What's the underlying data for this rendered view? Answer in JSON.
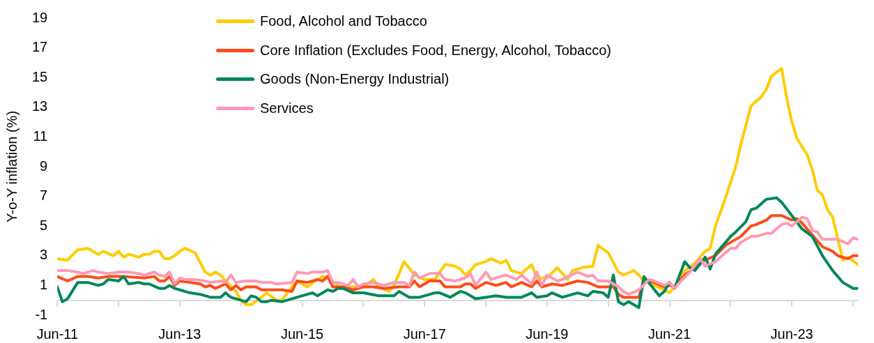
{
  "chart_data": {
    "type": "line",
    "ylabel": "Y-o-Y inflation (%)",
    "ylim": [
      -1,
      19
    ],
    "yticks": [
      -1,
      1,
      3,
      5,
      7,
      9,
      11,
      13,
      15,
      17,
      19
    ],
    "xlim": [
      "2011-06",
      "2024-07"
    ],
    "xticks": [
      {
        "value": "2011-06",
        "label": "Jun-11"
      },
      {
        "value": "2012-06",
        "label": null
      },
      {
        "value": "2013-06",
        "label": "Jun-13"
      },
      {
        "value": "2014-06",
        "label": null
      },
      {
        "value": "2015-06",
        "label": "Jun-15"
      },
      {
        "value": "2016-06",
        "label": null
      },
      {
        "value": "2017-06",
        "label": "Jun-17"
      },
      {
        "value": "2018-06",
        "label": null
      },
      {
        "value": "2019-06",
        "label": "Jun-19"
      },
      {
        "value": "2020-06",
        "label": null
      },
      {
        "value": "2021-06",
        "label": "Jun-21"
      },
      {
        "value": "2022-06",
        "label": null
      },
      {
        "value": "2023-06",
        "label": "Jun-23"
      },
      {
        "value": "2024-06",
        "label": null
      }
    ],
    "grid": false,
    "legend": "top",
    "series": [
      {
        "name": "Food, Alcohol and Tobacco",
        "color": "#ffcc00",
        "x": [
          "2011-06",
          "2011-08",
          "2011-10",
          "2011-12",
          "2012-02",
          "2012-03",
          "2012-05",
          "2012-06",
          "2012-07",
          "2012-08",
          "2012-10",
          "2012-11",
          "2012-12",
          "2013-01",
          "2013-02",
          "2013-03",
          "2013-04",
          "2013-05",
          "2013-06",
          "2013-07",
          "2013-09",
          "2013-11",
          "2013-12",
          "2014-01",
          "2014-02",
          "2014-03",
          "2014-05",
          "2014-06",
          "2014-07",
          "2014-08",
          "2014-10",
          "2014-11",
          "2015-01",
          "2015-02",
          "2015-04",
          "2015-05",
          "2015-07",
          "2015-09",
          "2015-10",
          "2015-11",
          "2016-01",
          "2016-02",
          "2016-04",
          "2016-06",
          "2016-08",
          "2016-09",
          "2016-11",
          "2016-12",
          "2017-02",
          "2017-04",
          "2017-06",
          "2017-08",
          "2017-09",
          "2017-10",
          "2017-12",
          "2018-01",
          "2018-02",
          "2018-03",
          "2018-04",
          "2018-06",
          "2018-07",
          "2018-09",
          "2018-10",
          "2018-11",
          "2019-01",
          "2019-03",
          "2019-04",
          "2019-06",
          "2019-08",
          "2019-10",
          "2019-11",
          "2020-01",
          "2020-03",
          "2020-04",
          "2020-06",
          "2020-08",
          "2020-09",
          "2020-11",
          "2020-12",
          "2021-01",
          "2021-03",
          "2021-05",
          "2021-06",
          "2021-07",
          "2021-08",
          "2021-09",
          "2021-11",
          "2022-01",
          "2022-02",
          "2022-03",
          "2022-05",
          "2022-07",
          "2022-08",
          "2022-10",
          "2022-12",
          "2023-01",
          "2023-02",
          "2023-04",
          "2023-05",
          "2023-06",
          "2023-07",
          "2023-09",
          "2023-10",
          "2023-11",
          "2023-12",
          "2024-01",
          "2024-02",
          "2024-04",
          "2024-05",
          "2024-07"
        ],
        "values": [
          2.8,
          2.7,
          3.4,
          3.5,
          3.1,
          3.3,
          3.0,
          3.3,
          2.9,
          3.1,
          2.9,
          3.1,
          3.1,
          3.3,
          3.3,
          2.8,
          2.8,
          3.0,
          3.3,
          3.5,
          3.2,
          1.9,
          1.7,
          1.9,
          1.7,
          1.3,
          0.6,
          0.0,
          -0.3,
          -0.3,
          0.2,
          0.5,
          0.0,
          0.0,
          0.9,
          1.3,
          0.9,
          1.4,
          1.6,
          1.5,
          1.0,
          0.8,
          0.9,
          0.9,
          1.4,
          0.9,
          0.6,
          1.0,
          2.6,
          1.7,
          1.4,
          1.4,
          1.9,
          2.4,
          2.3,
          2.1,
          1.7,
          2.0,
          2.4,
          2.6,
          2.8,
          2.5,
          2.7,
          2.0,
          1.8,
          2.4,
          1.5,
          1.5,
          2.2,
          1.4,
          2.0,
          2.2,
          2.3,
          3.7,
          3.2,
          1.9,
          1.7,
          2.0,
          1.7,
          1.3,
          1.0,
          0.7,
          0.5,
          0.9,
          1.5,
          2.0,
          2.5,
          3.3,
          3.5,
          5.0,
          6.9,
          9.0,
          10.5,
          13.1,
          13.7,
          14.2,
          15.1,
          15.6,
          13.6,
          12.0,
          10.9,
          9.8,
          8.8,
          7.4,
          7.1,
          6.1,
          5.6,
          2.7,
          2.9,
          2.4
        ]
      },
      {
        "name": "Core Inflation (Excludes Food, Energy, Alcohol, Tobacco)",
        "color": "#ff4b17",
        "x": [
          "2011-06",
          "2011-08",
          "2011-10",
          "2011-12",
          "2012-02",
          "2012-04",
          "2012-07",
          "2012-11",
          "2013-01",
          "2013-02",
          "2013-03",
          "2013-04",
          "2013-05",
          "2013-06",
          "2013-08",
          "2013-10",
          "2013-11",
          "2013-12",
          "2014-01",
          "2014-03",
          "2014-04",
          "2014-05",
          "2014-06",
          "2014-07",
          "2014-09",
          "2014-10",
          "2014-12",
          "2015-02",
          "2015-04",
          "2015-05",
          "2015-07",
          "2015-09",
          "2015-10",
          "2015-11",
          "2015-12",
          "2016-02",
          "2016-03",
          "2016-04",
          "2016-06",
          "2016-08",
          "2016-10",
          "2017-01",
          "2017-03",
          "2017-04",
          "2017-05",
          "2017-07",
          "2017-09",
          "2017-10",
          "2018-01",
          "2018-02",
          "2018-03",
          "2018-04",
          "2018-06",
          "2018-08",
          "2018-10",
          "2018-11",
          "2019-01",
          "2019-03",
          "2019-04",
          "2019-05",
          "2019-07",
          "2019-09",
          "2019-12",
          "2020-02",
          "2020-04",
          "2020-07",
          "2020-08",
          "2020-09",
          "2020-12",
          "2021-01",
          "2021-03",
          "2021-05",
          "2021-06",
          "2021-07",
          "2021-09",
          "2021-11",
          "2022-01",
          "2022-03",
          "2022-05",
          "2022-06",
          "2022-08",
          "2022-10",
          "2022-11",
          "2023-01",
          "2023-02",
          "2023-04",
          "2023-06",
          "2023-07",
          "2023-08",
          "2023-10",
          "2023-12",
          "2024-02",
          "2024-03",
          "2024-05",
          "2024-06",
          "2024-07"
        ],
        "values": [
          1.6,
          1.3,
          1.6,
          1.6,
          1.5,
          1.6,
          1.6,
          1.5,
          1.6,
          1.3,
          1.3,
          1.6,
          1.0,
          1.3,
          1.2,
          1.1,
          0.9,
          1.0,
          0.8,
          1.1,
          0.7,
          1.0,
          0.7,
          0.9,
          0.9,
          0.7,
          0.7,
          0.7,
          0.6,
          1.3,
          1.2,
          1.4,
          1.3,
          1.6,
          0.9,
          0.9,
          0.8,
          0.7,
          0.9,
          0.9,
          0.8,
          0.9,
          0.9,
          1.3,
          0.9,
          1.3,
          1.3,
          0.9,
          0.9,
          1.1,
          1.1,
          0.8,
          1.2,
          1.0,
          1.2,
          0.9,
          1.2,
          0.9,
          1.3,
          0.9,
          1.1,
          1.0,
          1.3,
          1.2,
          0.9,
          0.9,
          0.4,
          0.2,
          0.2,
          1.4,
          1.2,
          0.9,
          1.0,
          0.9,
          1.7,
          2.2,
          2.7,
          3.0,
          3.7,
          3.9,
          4.3,
          5.0,
          5.1,
          5.4,
          5.7,
          5.7,
          5.4,
          5.5,
          5.2,
          4.4,
          3.6,
          3.3,
          3.0,
          2.8,
          3.0,
          3.0
        ]
      },
      {
        "name": "Goods (Non-Energy Industrial)",
        "color": "#00875a",
        "x": [
          "2011-06",
          "2011-07",
          "2011-08",
          "2011-10",
          "2011-12",
          "2012-02",
          "2012-03",
          "2012-04",
          "2012-06",
          "2012-07",
          "2012-08",
          "2012-10",
          "2012-11",
          "2012-12",
          "2013-02",
          "2013-03",
          "2013-04",
          "2013-05",
          "2013-06",
          "2013-08",
          "2013-10",
          "2013-12",
          "2014-02",
          "2014-03",
          "2014-04",
          "2014-06",
          "2014-07",
          "2014-08",
          "2014-09",
          "2014-10",
          "2014-11",
          "2014-12",
          "2015-02",
          "2015-05",
          "2015-08",
          "2015-09",
          "2015-11",
          "2015-12",
          "2016-01",
          "2016-02",
          "2016-04",
          "2016-06",
          "2016-09",
          "2016-12",
          "2017-01",
          "2017-03",
          "2017-05",
          "2017-08",
          "2017-09",
          "2017-11",
          "2018-01",
          "2018-02",
          "2018-04",
          "2018-06",
          "2018-08",
          "2018-10",
          "2019-01",
          "2019-03",
          "2019-04",
          "2019-06",
          "2019-07",
          "2019-09",
          "2019-12",
          "2020-02",
          "2020-03",
          "2020-05",
          "2020-06",
          "2020-07",
          "2020-08",
          "2020-09",
          "2020-10",
          "2020-12",
          "2021-01",
          "2021-04",
          "2021-05",
          "2021-06",
          "2021-07",
          "2021-09",
          "2021-10",
          "2021-11",
          "2022-01",
          "2022-02",
          "2022-03",
          "2022-06",
          "2022-07",
          "2022-09",
          "2022-10",
          "2022-11",
          "2023-01",
          "2023-03",
          "2023-04",
          "2023-06",
          "2023-08",
          "2023-10",
          "2023-12",
          "2024-02",
          "2024-04",
          "2024-06",
          "2024-07"
        ],
        "values": [
          0.9,
          -0.1,
          0.1,
          1.2,
          1.2,
          1.0,
          1.1,
          1.4,
          1.3,
          1.6,
          1.1,
          1.2,
          1.1,
          1.1,
          0.8,
          0.8,
          1.0,
          0.8,
          0.7,
          0.5,
          0.4,
          0.2,
          0.2,
          0.5,
          0.2,
          0.0,
          -0.1,
          0.3,
          0.2,
          -0.1,
          -0.1,
          0.0,
          -0.1,
          0.2,
          0.5,
          0.3,
          0.7,
          0.6,
          0.8,
          0.8,
          0.5,
          0.5,
          0.3,
          0.3,
          0.6,
          0.2,
          0.2,
          0.5,
          0.5,
          0.2,
          0.6,
          0.5,
          0.1,
          0.2,
          0.3,
          0.2,
          0.2,
          0.5,
          0.2,
          0.3,
          0.5,
          0.2,
          0.5,
          0.3,
          0.6,
          0.5,
          0.2,
          1.7,
          -0.1,
          -0.3,
          -0.1,
          -0.5,
          1.6,
          0.3,
          0.6,
          1.2,
          0.8,
          2.6,
          2.2,
          2.0,
          2.9,
          2.1,
          3.1,
          4.3,
          4.6,
          5.3,
          6.1,
          6.2,
          6.8,
          6.9,
          6.6,
          5.7,
          4.8,
          4.3,
          3.0,
          2.0,
          1.2,
          0.8,
          0.8
        ]
      },
      {
        "name": "Services",
        "color": "#ff99b4",
        "x": [
          "2011-06",
          "2011-08",
          "2011-10",
          "2011-11",
          "2012-01",
          "2012-02",
          "2012-04",
          "2012-06",
          "2012-08",
          "2012-10",
          "2012-11",
          "2013-01",
          "2013-02",
          "2013-03",
          "2013-04",
          "2013-05",
          "2013-06",
          "2013-07",
          "2013-09",
          "2013-11",
          "2013-12",
          "2014-02",
          "2014-03",
          "2014-04",
          "2014-05",
          "2014-07",
          "2014-09",
          "2014-10",
          "2014-11",
          "2014-12",
          "2015-01",
          "2015-04",
          "2015-05",
          "2015-07",
          "2015-08",
          "2015-10",
          "2015-11",
          "2015-12",
          "2016-01",
          "2016-03",
          "2016-04",
          "2016-05",
          "2016-06",
          "2016-08",
          "2016-10",
          "2016-12",
          "2017-02",
          "2017-03",
          "2017-04",
          "2017-05",
          "2017-07",
          "2017-09",
          "2017-10",
          "2017-12",
          "2018-02",
          "2018-03",
          "2018-04",
          "2018-06",
          "2018-07",
          "2018-09",
          "2018-10",
          "2018-12",
          "2019-01",
          "2019-03",
          "2019-04",
          "2019-05",
          "2019-06",
          "2019-08",
          "2019-09",
          "2019-12",
          "2020-02",
          "2020-03",
          "2020-04",
          "2020-06",
          "2020-08",
          "2020-09",
          "2020-10",
          "2020-12",
          "2021-02",
          "2021-03",
          "2021-05",
          "2021-06",
          "2021-07",
          "2021-08",
          "2021-10",
          "2021-12",
          "2022-01",
          "2022-03",
          "2022-06",
          "2022-07",
          "2022-08",
          "2022-10",
          "2022-11",
          "2023-01",
          "2023-02",
          "2023-04",
          "2023-05",
          "2023-06",
          "2023-08",
          "2023-09",
          "2023-10",
          "2023-11",
          "2023-12",
          "2024-03",
          "2024-05",
          "2024-06",
          "2024-07"
        ],
        "values": [
          2.0,
          2.0,
          1.9,
          1.8,
          2.0,
          1.9,
          1.8,
          1.9,
          1.9,
          1.8,
          1.7,
          1.9,
          1.7,
          1.6,
          1.9,
          1.1,
          1.5,
          1.4,
          1.4,
          1.3,
          1.2,
          1.3,
          1.2,
          1.7,
          1.2,
          1.3,
          1.3,
          1.2,
          1.2,
          1.2,
          1.1,
          1.2,
          1.9,
          1.8,
          1.9,
          1.9,
          2.0,
          1.2,
          1.2,
          1.0,
          1.4,
          0.9,
          1.1,
          1.2,
          1.0,
          1.2,
          1.2,
          1.0,
          1.9,
          1.5,
          1.8,
          1.8,
          1.4,
          1.3,
          1.5,
          1.8,
          1.0,
          1.9,
          1.4,
          1.6,
          1.7,
          1.4,
          1.7,
          1.1,
          1.9,
          1.0,
          1.7,
          1.3,
          1.4,
          1.9,
          1.6,
          1.7,
          1.3,
          1.3,
          0.9,
          0.6,
          0.4,
          0.7,
          1.4,
          1.3,
          1.0,
          1.2,
          0.8,
          1.2,
          1.9,
          2.8,
          2.3,
          2.6,
          3.5,
          3.5,
          3.9,
          4.3,
          4.3,
          4.5,
          4.5,
          5.1,
          5.2,
          5.0,
          5.6,
          5.5,
          4.7,
          4.6,
          4.1,
          4.1,
          3.8,
          4.2,
          4.1
        ]
      }
    ]
  }
}
